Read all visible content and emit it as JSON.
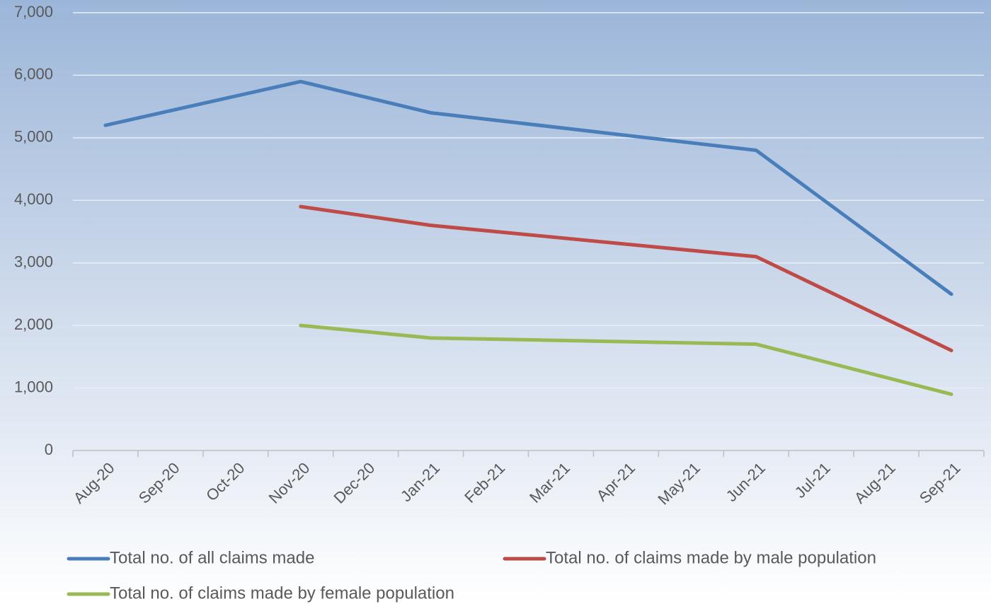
{
  "chart_data": {
    "type": "line",
    "categories": [
      "Aug-20",
      "Sep-20",
      "Oct-20",
      "Nov-20",
      "Dec-20",
      "Jan-21",
      "Feb-21",
      "Mar-21",
      "Apr-21",
      "May-21",
      "Jun-21",
      "Jul-21",
      "Aug-21",
      "Sep-21"
    ],
    "series": [
      {
        "name": "Total no. of all claims made",
        "color": "#4a7ebb",
        "x": [
          "Aug-20",
          "Nov-20",
          "Jan-21",
          "Jun-21",
          "Sep-21"
        ],
        "values": [
          5200,
          5900,
          5400,
          4800,
          2500
        ]
      },
      {
        "name": "Total no. of claims made by male population",
        "color": "#be4b48",
        "x": [
          "Nov-20",
          "Jan-21",
          "Jun-21",
          "Sep-21"
        ],
        "values": [
          3900,
          3600,
          3100,
          1600
        ]
      },
      {
        "name": "Total no. of claims made by female population",
        "color": "#98b954",
        "x": [
          "Nov-20",
          "Jan-21",
          "Jun-21",
          "Sep-21"
        ],
        "values": [
          2000,
          1800,
          1700,
          900
        ]
      }
    ],
    "ylim": [
      0,
      7000
    ],
    "yticks": [
      0,
      {
        "value": 1000,
        "label": "1,000"
      },
      {
        "value": 2000,
        "label": "2,000"
      },
      {
        "value": 3000,
        "label": "3,000"
      },
      {
        "value": 4000,
        "label": "4,000"
      },
      {
        "value": 5000,
        "label": "5,000"
      },
      {
        "value": 6000,
        "label": "6,000"
      },
      {
        "value": 7000,
        "label": "7,000"
      }
    ],
    "grid": true
  }
}
